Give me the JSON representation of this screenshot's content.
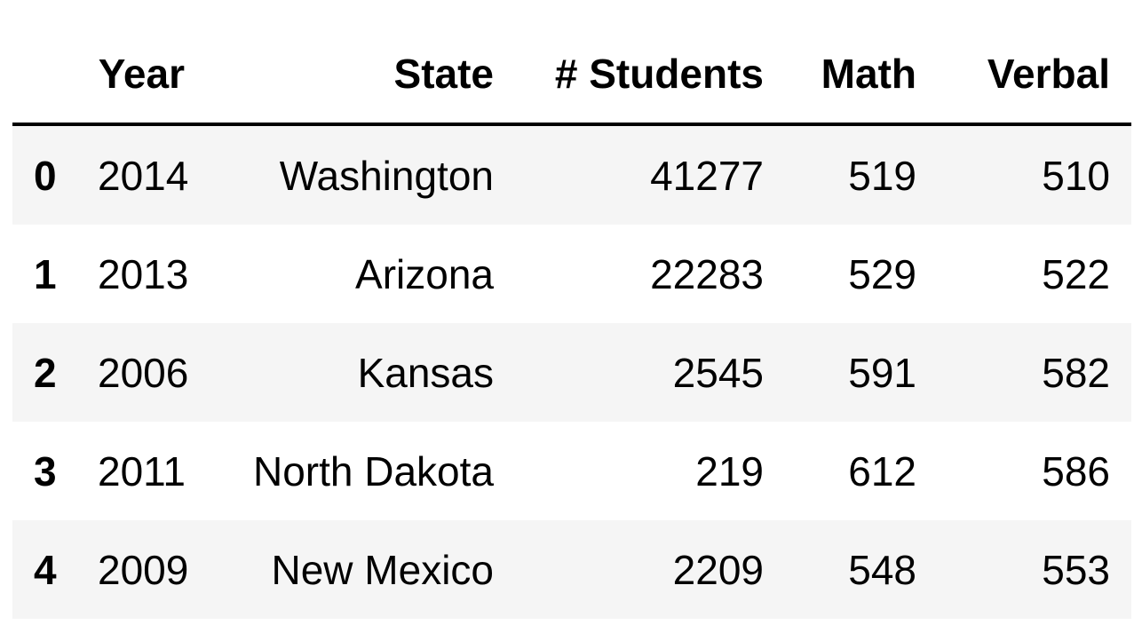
{
  "table": {
    "columns": [
      "Year",
      "State",
      "# Students",
      "Math",
      "Verbal"
    ],
    "rows": [
      {
        "index": "0",
        "year": "2014",
        "state": "Washington",
        "students": "41277",
        "math": "519",
        "verbal": "510"
      },
      {
        "index": "1",
        "year": "2013",
        "state": "Arizona",
        "students": "22283",
        "math": "529",
        "verbal": "522"
      },
      {
        "index": "2",
        "year": "2006",
        "state": "Kansas",
        "students": "2545",
        "math": "591",
        "verbal": "582"
      },
      {
        "index": "3",
        "year": "2011",
        "state": "North Dakota",
        "students": "219",
        "math": "612",
        "verbal": "586"
      },
      {
        "index": "4",
        "year": "2009",
        "state": "New Mexico",
        "students": "2209",
        "math": "548",
        "verbal": "553"
      }
    ]
  }
}
